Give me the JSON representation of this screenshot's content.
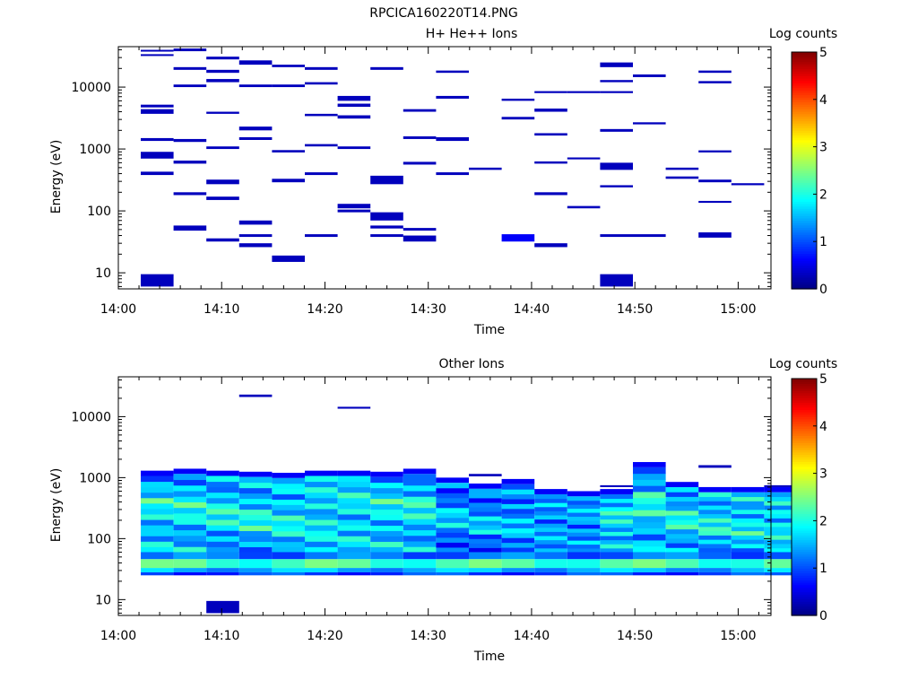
{
  "figure_title": "RPCICA160220T14.PNG",
  "chart_data": [
    {
      "type": "heatmap",
      "title": "H+ He++ Ions",
      "xlabel": "Time",
      "ylabel": "Energy (eV)",
      "yscale": "log",
      "xticks": [
        "14:00",
        "14:10",
        "14:20",
        "14:30",
        "14:40",
        "14:50",
        "15:00"
      ],
      "yticks": [
        "10",
        "100",
        "1000",
        "10000"
      ],
      "colorbar": {
        "label": "Log counts",
        "ticks": [
          "0",
          "1",
          "2",
          "3",
          "4",
          "5"
        ],
        "range": [
          0,
          5
        ],
        "colormap": "jet"
      },
      "time_columns": [
        "14:02",
        "14:05",
        "14:08",
        "14:11",
        "14:14",
        "14:18",
        "14:21",
        "14:24",
        "14:27",
        "14:30",
        "14:34",
        "14:37",
        "14:40",
        "14:43",
        "14:46",
        "14:49",
        "14:53",
        "14:56",
        "14:59",
        "15:02"
      ],
      "cells": [
        {
          "col": 1,
          "e1": 38000,
          "e2": 40000,
          "v": 0.3
        },
        {
          "col": 1,
          "e1": 32000,
          "e2": 34000,
          "v": 0.3
        },
        {
          "col": 1,
          "e1": 4700,
          "e2": 5200,
          "v": 0.3
        },
        {
          "col": 1,
          "e1": 3700,
          "e2": 4400,
          "v": 0.3
        },
        {
          "col": 1,
          "e1": 1350,
          "e2": 1500,
          "v": 0.3
        },
        {
          "col": 1,
          "e1": 700,
          "e2": 900,
          "v": 0.3
        },
        {
          "col": 1,
          "e1": 380,
          "e2": 430,
          "v": 0.3
        },
        {
          "col": 1,
          "e1": 6,
          "e2": 9.5,
          "v": 0.3
        },
        {
          "col": 2,
          "e1": 38000,
          "e2": 42000,
          "v": 0.3
        },
        {
          "col": 2,
          "e1": 19000,
          "e2": 21000,
          "v": 0.3
        },
        {
          "col": 2,
          "e1": 10000,
          "e2": 11000,
          "v": 0.3
        },
        {
          "col": 2,
          "e1": 1300,
          "e2": 1450,
          "v": 0.3
        },
        {
          "col": 2,
          "e1": 580,
          "e2": 650,
          "v": 0.3
        },
        {
          "col": 2,
          "e1": 180,
          "e2": 200,
          "v": 0.3
        },
        {
          "col": 2,
          "e1": 48,
          "e2": 58,
          "v": 0.3
        },
        {
          "col": 3,
          "e1": 28000,
          "e2": 31000,
          "v": 0.3
        },
        {
          "col": 3,
          "e1": 17000,
          "e2": 19000,
          "v": 0.3
        },
        {
          "col": 3,
          "e1": 12000,
          "e2": 13500,
          "v": 0.3
        },
        {
          "col": 3,
          "e1": 3700,
          "e2": 4000,
          "v": 0.3
        },
        {
          "col": 3,
          "e1": 1000,
          "e2": 1100,
          "v": 0.3
        },
        {
          "col": 3,
          "e1": 270,
          "e2": 320,
          "v": 0.3
        },
        {
          "col": 3,
          "e1": 150,
          "e2": 170,
          "v": 0.3
        },
        {
          "col": 3,
          "e1": 32,
          "e2": 36,
          "v": 0.3
        },
        {
          "col": 4,
          "e1": 23000,
          "e2": 27000,
          "v": 0.3
        },
        {
          "col": 4,
          "e1": 10000,
          "e2": 11000,
          "v": 0.3
        },
        {
          "col": 4,
          "e1": 2000,
          "e2": 2300,
          "v": 0.3
        },
        {
          "col": 4,
          "e1": 1400,
          "e2": 1550,
          "v": 0.3
        },
        {
          "col": 4,
          "e1": 60,
          "e2": 70,
          "v": 0.3
        },
        {
          "col": 4,
          "e1": 38,
          "e2": 42,
          "v": 0.3
        },
        {
          "col": 4,
          "e1": 26,
          "e2": 30,
          "v": 0.3
        },
        {
          "col": 5,
          "e1": 21000,
          "e2": 23000,
          "v": 0.3
        },
        {
          "col": 5,
          "e1": 10000,
          "e2": 11000,
          "v": 0.3
        },
        {
          "col": 5,
          "e1": 880,
          "e2": 960,
          "v": 0.3
        },
        {
          "col": 5,
          "e1": 290,
          "e2": 330,
          "v": 0.3
        },
        {
          "col": 5,
          "e1": 15,
          "e2": 19,
          "v": 0.3
        },
        {
          "col": 6,
          "e1": 19000,
          "e2": 21000,
          "v": 0.3
        },
        {
          "col": 6,
          "e1": 11000,
          "e2": 12000,
          "v": 0.3
        },
        {
          "col": 6,
          "e1": 3400,
          "e2": 3700,
          "v": 0.3
        },
        {
          "col": 6,
          "e1": 1100,
          "e2": 1200,
          "v": 0.3
        },
        {
          "col": 6,
          "e1": 380,
          "e2": 420,
          "v": 0.3
        },
        {
          "col": 6,
          "e1": 38,
          "e2": 42,
          "v": 0.3
        },
        {
          "col": 7,
          "e1": 6000,
          "e2": 7200,
          "v": 0.3
        },
        {
          "col": 7,
          "e1": 4800,
          "e2": 5400,
          "v": 0.3
        },
        {
          "col": 7,
          "e1": 3100,
          "e2": 3500,
          "v": 0.3
        },
        {
          "col": 7,
          "e1": 1000,
          "e2": 1100,
          "v": 0.3
        },
        {
          "col": 7,
          "e1": 110,
          "e2": 130,
          "v": 0.3
        },
        {
          "col": 7,
          "e1": 95,
          "e2": 105,
          "v": 0.3
        },
        {
          "col": 8,
          "e1": 19000,
          "e2": 21000,
          "v": 0.3
        },
        {
          "col": 8,
          "e1": 270,
          "e2": 370,
          "v": 0.3
        },
        {
          "col": 8,
          "e1": 70,
          "e2": 95,
          "v": 0.3
        },
        {
          "col": 8,
          "e1": 52,
          "e2": 58,
          "v": 0.3
        },
        {
          "col": 8,
          "e1": 38,
          "e2": 42,
          "v": 0.3
        },
        {
          "col": 9,
          "e1": 4000,
          "e2": 4400,
          "v": 0.3
        },
        {
          "col": 9,
          "e1": 1450,
          "e2": 1600,
          "v": 0.3
        },
        {
          "col": 9,
          "e1": 560,
          "e2": 620,
          "v": 0.3
        },
        {
          "col": 9,
          "e1": 48,
          "e2": 53,
          "v": 0.3
        },
        {
          "col": 9,
          "e1": 32,
          "e2": 40,
          "v": 0.3
        },
        {
          "col": 10,
          "e1": 17000,
          "e2": 18500,
          "v": 0.3
        },
        {
          "col": 10,
          "e1": 6500,
          "e2": 7200,
          "v": 0.3
        },
        {
          "col": 10,
          "e1": 1350,
          "e2": 1550,
          "v": 0.3
        },
        {
          "col": 10,
          "e1": 380,
          "e2": 420,
          "v": 0.3
        },
        {
          "col": 11,
          "e1": 460,
          "e2": 500,
          "v": 0.3
        },
        {
          "col": 12,
          "e1": 6000,
          "e2": 6500,
          "v": 0.3
        },
        {
          "col": 12,
          "e1": 3000,
          "e2": 3300,
          "v": 0.3
        },
        {
          "col": 12,
          "e1": 32,
          "e2": 42,
          "v": 0.6
        },
        {
          "col": 13,
          "e1": 8000,
          "e2": 8600,
          "v": 0.3
        },
        {
          "col": 13,
          "e1": 4000,
          "e2": 4500,
          "v": 0.3
        },
        {
          "col": 13,
          "e1": 1650,
          "e2": 1800,
          "v": 0.3
        },
        {
          "col": 13,
          "e1": 580,
          "e2": 630,
          "v": 0.3
        },
        {
          "col": 13,
          "e1": 180,
          "e2": 200,
          "v": 0.3
        },
        {
          "col": 13,
          "e1": 26,
          "e2": 30,
          "v": 0.3
        },
        {
          "col": 14,
          "e1": 8000,
          "e2": 8600,
          "v": 0.3
        },
        {
          "col": 14,
          "e1": 680,
          "e2": 730,
          "v": 0.3
        },
        {
          "col": 14,
          "e1": 110,
          "e2": 120,
          "v": 0.3
        },
        {
          "col": 15,
          "e1": 21000,
          "e2": 25000,
          "v": 0.3
        },
        {
          "col": 15,
          "e1": 12000,
          "e2": 13000,
          "v": 0.3
        },
        {
          "col": 15,
          "e1": 8000,
          "e2": 8600,
          "v": 0.3
        },
        {
          "col": 15,
          "e1": 1900,
          "e2": 2100,
          "v": 0.3
        },
        {
          "col": 15,
          "e1": 460,
          "e2": 600,
          "v": 0.3
        },
        {
          "col": 15,
          "e1": 240,
          "e2": 260,
          "v": 0.3
        },
        {
          "col": 15,
          "e1": 38,
          "e2": 42,
          "v": 0.3
        },
        {
          "col": 15,
          "e1": 6,
          "e2": 9.5,
          "v": 0.3
        },
        {
          "col": 16,
          "e1": 14500,
          "e2": 16000,
          "v": 0.3
        },
        {
          "col": 16,
          "e1": 2500,
          "e2": 2700,
          "v": 0.3
        },
        {
          "col": 16,
          "e1": 38,
          "e2": 42,
          "v": 0.3
        },
        {
          "col": 17,
          "e1": 460,
          "e2": 500,
          "v": 0.3
        },
        {
          "col": 17,
          "e1": 330,
          "e2": 360,
          "v": 0.3
        },
        {
          "col": 18,
          "e1": 17000,
          "e2": 18500,
          "v": 0.3
        },
        {
          "col": 18,
          "e1": 11500,
          "e2": 12500,
          "v": 0.3
        },
        {
          "col": 18,
          "e1": 880,
          "e2": 950,
          "v": 0.3
        },
        {
          "col": 18,
          "e1": 290,
          "e2": 320,
          "v": 0.3
        },
        {
          "col": 18,
          "e1": 135,
          "e2": 145,
          "v": 0.3
        },
        {
          "col": 18,
          "e1": 37,
          "e2": 45,
          "v": 0.3
        },
        {
          "col": 19,
          "e1": 260,
          "e2": 280,
          "v": 0.3
        }
      ]
    },
    {
      "type": "heatmap",
      "title": "Other Ions",
      "xlabel": "Time",
      "ylabel": "Energy (eV)",
      "yscale": "log",
      "xticks": [
        "14:00",
        "14:10",
        "14:20",
        "14:30",
        "14:40",
        "14:50",
        "15:00"
      ],
      "yticks": [
        "10",
        "100",
        "1000",
        "10000"
      ],
      "colorbar": {
        "label": "Log counts",
        "ticks": [
          "0",
          "1",
          "2",
          "3",
          "4",
          "5"
        ],
        "range": [
          0,
          5
        ],
        "colormap": "jet"
      },
      "time_columns": [
        "14:02",
        "14:05",
        "14:08",
        "14:11",
        "14:14",
        "14:18",
        "14:21",
        "14:24",
        "14:27",
        "14:30",
        "14:34",
        "14:37",
        "14:40",
        "14:43",
        "14:46",
        "14:49",
        "14:53",
        "14:56",
        "14:59",
        "15:02"
      ],
      "band_tops_eV": [
        1300,
        1400,
        1300,
        1250,
        1200,
        1300,
        1300,
        1250,
        1400,
        1000,
        800,
        950,
        650,
        600,
        650,
        1800,
        850,
        700,
        700,
        700
      ],
      "band_bottom_eV": 25,
      "band_profile": "moderate counts (about 1 to 2.3) between 60 eV and top, peak near 40 eV",
      "cells": [
        {
          "col": 4,
          "e1": 21000,
          "e2": 23000,
          "v": 0.3
        },
        {
          "col": 7,
          "e1": 13500,
          "e2": 14500,
          "v": 0.3
        },
        {
          "col": 3,
          "e1": 6,
          "e2": 9.5,
          "v": 0.3
        },
        {
          "col": 18,
          "e1": 1450,
          "e2": 1600,
          "v": 0.3
        },
        {
          "col": 11,
          "e1": 1050,
          "e2": 1150,
          "v": 0.3
        },
        {
          "col": 15,
          "e1": 700,
          "e2": 750,
          "v": 0.3
        },
        {
          "col": 20,
          "e1": 700,
          "e2": 750,
          "v": 0.3
        }
      ]
    }
  ]
}
